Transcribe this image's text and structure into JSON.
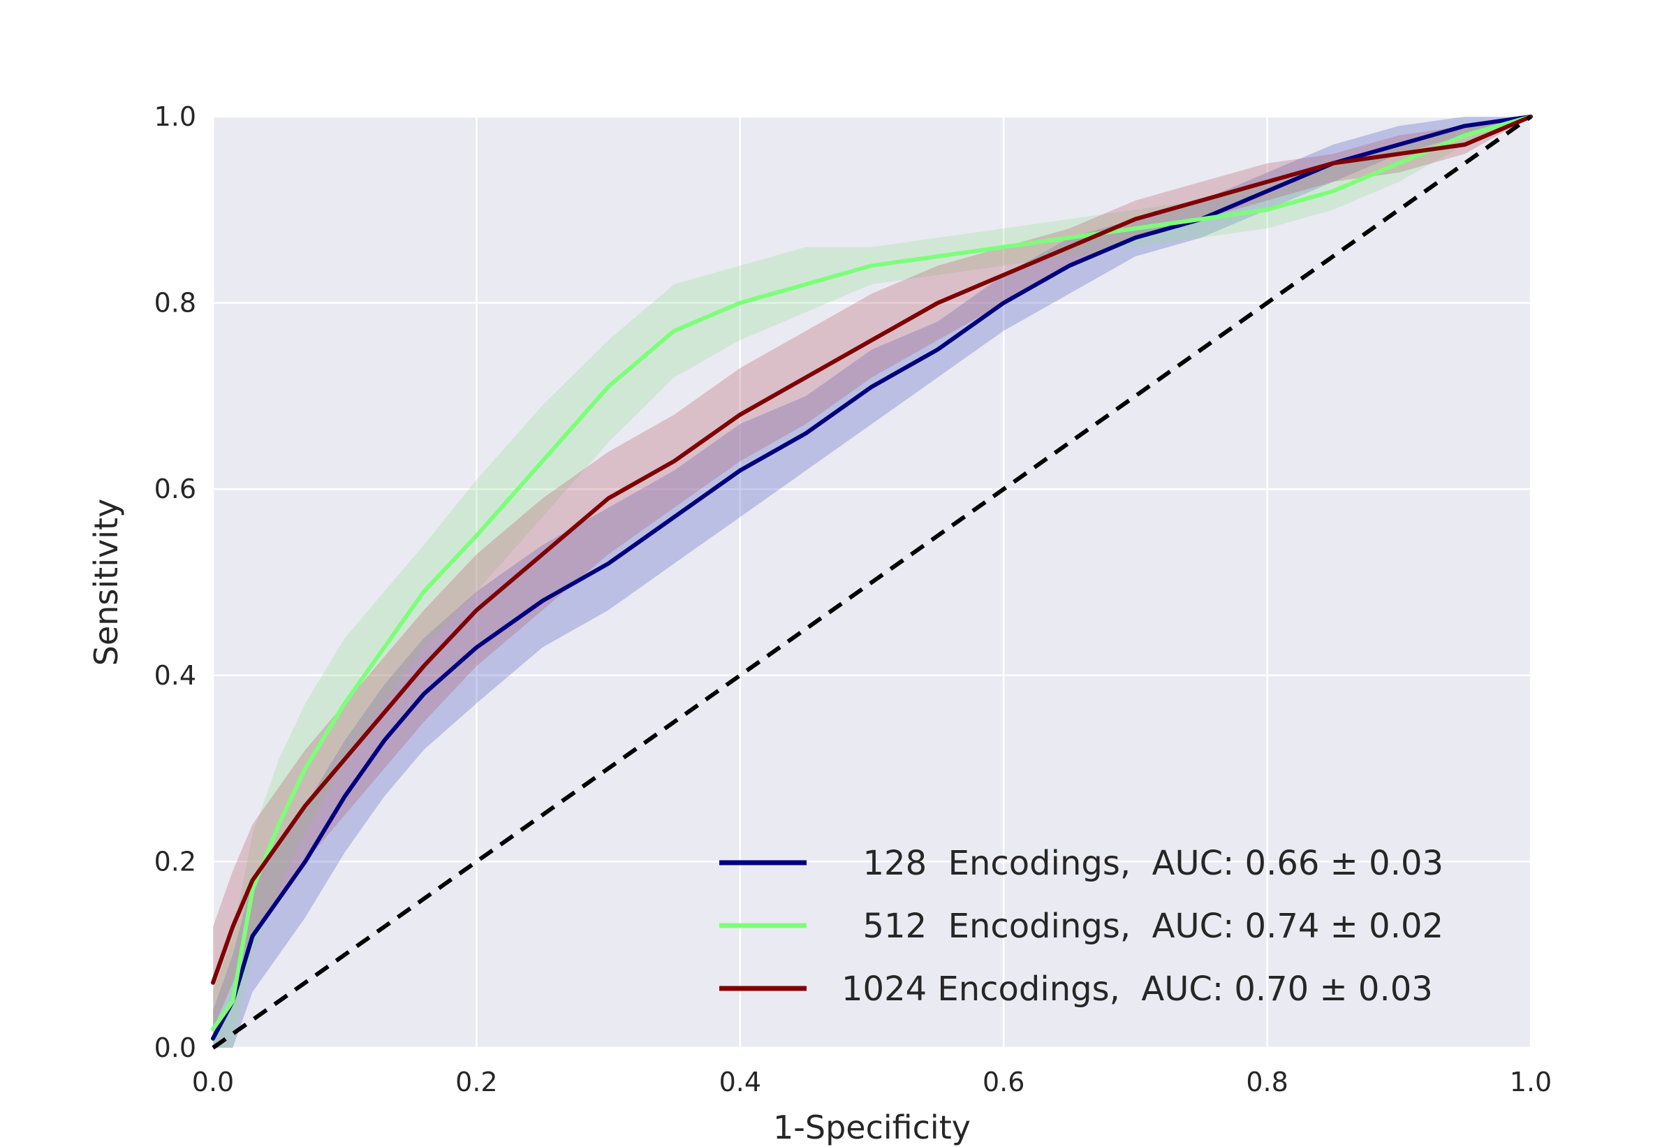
{
  "chart_data": {
    "type": "line",
    "xlabel": "1-Specificity",
    "ylabel": "Sensitivity",
    "xlim": [
      0.0,
      1.0
    ],
    "ylim": [
      0.0,
      1.0
    ],
    "xticks": [
      "0.0",
      "0.2",
      "0.4",
      "0.6",
      "0.8",
      "1.0"
    ],
    "yticks": [
      "0.0",
      "0.2",
      "0.4",
      "0.6",
      "0.8",
      "1.0"
    ],
    "grid": true,
    "legend_position": "lower-right",
    "background_color": "#eaeaf2",
    "grid_color": "#ffffff",
    "chance_line": {
      "x": [
        0.0,
        1.0
      ],
      "y": [
        0.0,
        1.0
      ],
      "color": "#000000",
      "style": "dashed"
    },
    "series": [
      {
        "name": "128 Encodings",
        "legend_label": "  128  Encodings,  AUC: 0.66 ± 0.03",
        "color": "#00007f",
        "band_color": "#4050c0",
        "x": [
          0.0,
          0.015,
          0.03,
          0.05,
          0.07,
          0.1,
          0.13,
          0.16,
          0.2,
          0.25,
          0.3,
          0.35,
          0.4,
          0.45,
          0.5,
          0.55,
          0.6,
          0.65,
          0.7,
          0.75,
          0.8,
          0.85,
          0.9,
          0.95,
          1.0
        ],
        "y": [
          0.01,
          0.05,
          0.12,
          0.16,
          0.2,
          0.27,
          0.33,
          0.38,
          0.43,
          0.48,
          0.52,
          0.57,
          0.62,
          0.66,
          0.71,
          0.75,
          0.8,
          0.84,
          0.87,
          0.89,
          0.92,
          0.95,
          0.97,
          0.99,
          1.0
        ],
        "lower": [
          0.0,
          0.0,
          0.06,
          0.1,
          0.14,
          0.21,
          0.27,
          0.32,
          0.37,
          0.43,
          0.47,
          0.52,
          0.57,
          0.62,
          0.67,
          0.72,
          0.77,
          0.81,
          0.85,
          0.87,
          0.9,
          0.93,
          0.96,
          0.98,
          1.0
        ],
        "upper": [
          0.04,
          0.1,
          0.18,
          0.22,
          0.26,
          0.33,
          0.39,
          0.44,
          0.49,
          0.54,
          0.58,
          0.62,
          0.67,
          0.7,
          0.75,
          0.78,
          0.83,
          0.87,
          0.89,
          0.91,
          0.94,
          0.97,
          0.99,
          1.0,
          1.0
        ]
      },
      {
        "name": "512 Encodings",
        "legend_label": "  512  Encodings,  AUC: 0.74 ± 0.02",
        "color": "#7dff7a",
        "band_color": "#90e090",
        "x": [
          0.0,
          0.015,
          0.03,
          0.05,
          0.07,
          0.1,
          0.13,
          0.16,
          0.2,
          0.25,
          0.3,
          0.35,
          0.4,
          0.45,
          0.5,
          0.55,
          0.6,
          0.65,
          0.7,
          0.75,
          0.8,
          0.85,
          0.9,
          0.95,
          1.0
        ],
        "y": [
          0.02,
          0.05,
          0.17,
          0.24,
          0.3,
          0.37,
          0.43,
          0.49,
          0.55,
          0.63,
          0.71,
          0.77,
          0.8,
          0.82,
          0.84,
          0.85,
          0.86,
          0.87,
          0.88,
          0.89,
          0.9,
          0.92,
          0.95,
          0.98,
          1.0
        ],
        "lower": [
          0.0,
          0.0,
          0.1,
          0.17,
          0.23,
          0.31,
          0.37,
          0.43,
          0.49,
          0.57,
          0.65,
          0.72,
          0.76,
          0.79,
          0.82,
          0.83,
          0.84,
          0.85,
          0.86,
          0.87,
          0.88,
          0.9,
          0.93,
          0.97,
          1.0
        ],
        "upper": [
          0.06,
          0.12,
          0.23,
          0.31,
          0.37,
          0.44,
          0.49,
          0.54,
          0.61,
          0.69,
          0.76,
          0.82,
          0.84,
          0.86,
          0.86,
          0.87,
          0.88,
          0.89,
          0.9,
          0.91,
          0.93,
          0.95,
          0.97,
          0.99,
          1.0
        ]
      },
      {
        "name": "1024 Encodings",
        "legend_label": "1024 Encodings,  AUC: 0.70 ± 0.03",
        "color": "#7f0000",
        "band_color": "#b05060",
        "x": [
          0.0,
          0.015,
          0.03,
          0.05,
          0.07,
          0.1,
          0.13,
          0.16,
          0.2,
          0.25,
          0.3,
          0.35,
          0.4,
          0.45,
          0.5,
          0.55,
          0.6,
          0.65,
          0.7,
          0.75,
          0.8,
          0.85,
          0.9,
          0.95,
          1.0
        ],
        "y": [
          0.07,
          0.13,
          0.18,
          0.22,
          0.26,
          0.31,
          0.36,
          0.41,
          0.47,
          0.53,
          0.59,
          0.63,
          0.68,
          0.72,
          0.76,
          0.8,
          0.83,
          0.86,
          0.89,
          0.91,
          0.93,
          0.95,
          0.96,
          0.97,
          1.0
        ],
        "lower": [
          0.02,
          0.07,
          0.12,
          0.16,
          0.2,
          0.25,
          0.3,
          0.35,
          0.41,
          0.47,
          0.53,
          0.58,
          0.63,
          0.67,
          0.72,
          0.76,
          0.8,
          0.84,
          0.87,
          0.89,
          0.91,
          0.93,
          0.94,
          0.96,
          1.0
        ],
        "upper": [
          0.13,
          0.19,
          0.24,
          0.28,
          0.32,
          0.37,
          0.42,
          0.47,
          0.53,
          0.59,
          0.64,
          0.68,
          0.73,
          0.77,
          0.81,
          0.84,
          0.86,
          0.88,
          0.91,
          0.93,
          0.95,
          0.96,
          0.98,
          0.99,
          1.0
        ]
      }
    ]
  }
}
